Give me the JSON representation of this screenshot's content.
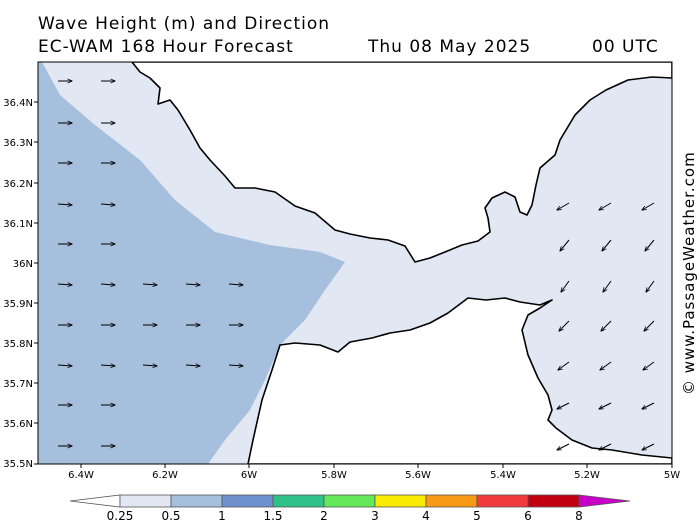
{
  "header": {
    "line1": "Wave Height (m) and Direction",
    "line2": "EC-WAM 168 Hour Forecast",
    "date": "Thu 08 May 2025",
    "time": "00 UTC"
  },
  "map": {
    "lat_labels": [
      "36.4N",
      "36.3N",
      "36.2N",
      "36.1N",
      "36N",
      "35.9N",
      "35.8N",
      "35.7N",
      "35.6N",
      "35.5N"
    ],
    "lon_labels": [
      "6.4W",
      "6.2W",
      "6W",
      "5.8W",
      "5.6W",
      "5.4W",
      "5.2W",
      "5W"
    ],
    "colors": {
      "land": "#ffffff",
      "sea_0_25": "#e1e8f3",
      "sea_0_5_1": "#a6bfdd",
      "coast": "#000000"
    },
    "arrow_direction_atlantic": "east",
    "arrow_direction_mediterranean": "southwest"
  },
  "legend": {
    "labels": [
      "0.25",
      "0.5",
      "1",
      "1.5",
      "2",
      "3",
      "4",
      "5",
      "6",
      "8"
    ],
    "colors": [
      "#ffffff",
      "#e1e8f3",
      "#a6bfdd",
      "#6e90cc",
      "#2ec28a",
      "#63e85a",
      "#f8ea00",
      "#f99a16",
      "#ef3b3b",
      "#c10010",
      "#c800c8"
    ]
  },
  "credit": "© www.PassageWeather.com"
}
